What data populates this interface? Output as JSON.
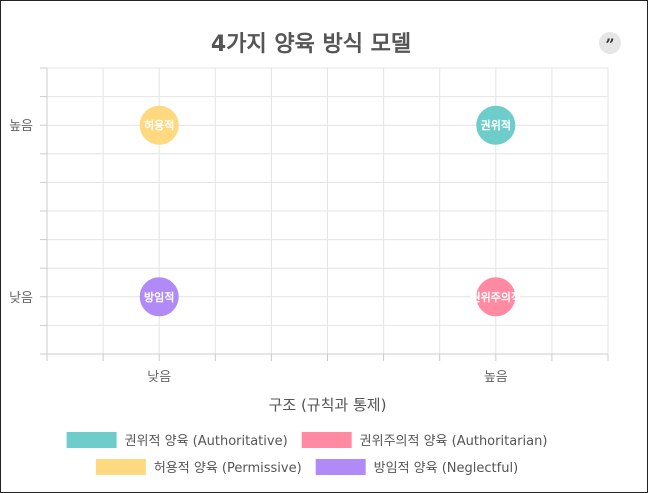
{
  "chart_data": {
    "type": "scatter",
    "title": "4가지 양육 방식 모델",
    "xlabel": "구조 (규칙과 통제)",
    "ylabel": "",
    "x_ticks": [
      "낮음",
      "높음"
    ],
    "y_ticks": [
      "낮음",
      "높음"
    ],
    "xlim": [
      0,
      3
    ],
    "ylim": [
      0,
      3
    ],
    "grid": true,
    "legend_position": "bottom",
    "series": [
      {
        "name": "권위적 양육 (Authoritative)",
        "label": "권위적",
        "color": "#6ECDCB",
        "x": 2.4,
        "y": 2.4
      },
      {
        "name": "권위주의적 양육 (Authoritarian)",
        "label": "권위주의적",
        "color": "#FF8AA2",
        "x": 2.4,
        "y": 0.6
      },
      {
        "name": "허용적 양육 (Permissive)",
        "label": "허용적",
        "color": "#FFD980",
        "x": 0.6,
        "y": 2.4
      },
      {
        "name": "방임적 양육 (Neglectful)",
        "label": "방임적",
        "color": "#B08AF7",
        "x": 0.6,
        "y": 0.6
      }
    ]
  },
  "toolbar": {
    "quote_icon": "quote-icon",
    "quote_glyph": "”"
  }
}
